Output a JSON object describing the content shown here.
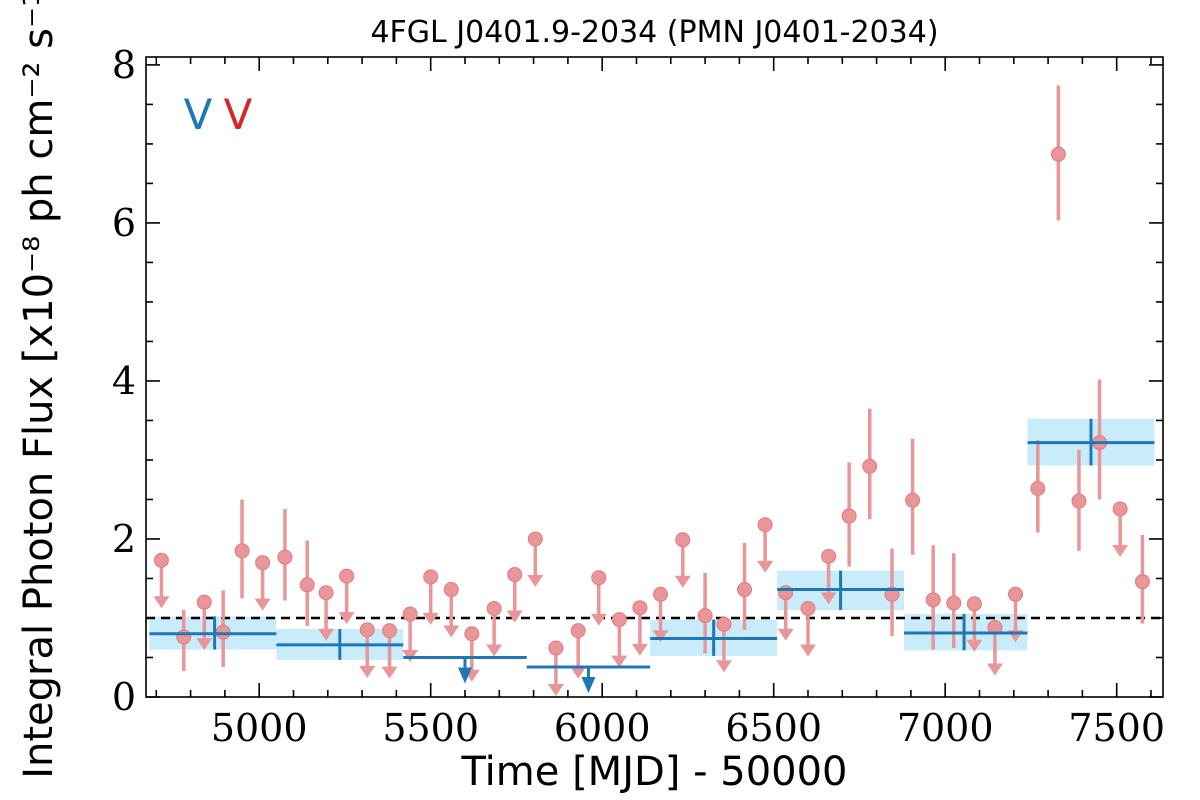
{
  "chart_data": {
    "type": "scatter",
    "title": "4FGL J0401.9-2034 (PMN J0401-2034)",
    "xlabel": "Time [MJD] - 50000",
    "ylabel": "Integral Photon Flux [x10⁻⁸ ph cm⁻² s⁻¹]",
    "xlim": [
      4670,
      7635
    ],
    "ylim": [
      0,
      8.1
    ],
    "x_ticks": [
      "5000",
      "5500",
      "6000",
      "6500",
      "7000",
      "7500"
    ],
    "y_ticks": [
      "0",
      "2",
      "4",
      "6",
      "8"
    ],
    "reference_line": {
      "y": 1.0,
      "style": "dashed",
      "color": "#000000"
    },
    "legend": [
      {
        "label": "V",
        "color": "#1f77b4"
      },
      {
        "label": "V",
        "color": "#d62728"
      }
    ],
    "colors": {
      "fine": "#e9969a",
      "coarse": "#1f77b4",
      "band": "#c9ecfa"
    },
    "series": [
      {
        "color": "#e9969a",
        "detections": [
          {
            "x": 4780,
            "y": 0.76,
            "lo": 0.33,
            "hi": 1.1
          },
          {
            "x": 4895,
            "y": 0.82,
            "lo": 0.38,
            "hi": 1.35
          },
          {
            "x": 4950,
            "y": 1.85,
            "lo": 1.25,
            "hi": 2.5
          },
          {
            "x": 5075,
            "y": 1.77,
            "lo": 1.22,
            "hi": 2.38
          },
          {
            "x": 5140,
            "y": 1.42,
            "lo": 0.9,
            "hi": 1.98
          },
          {
            "x": 6300,
            "y": 1.03,
            "lo": 0.55,
            "hi": 1.57
          },
          {
            "x": 6415,
            "y": 1.36,
            "lo": 0.85,
            "hi": 1.95
          },
          {
            "x": 6720,
            "y": 2.29,
            "lo": 1.65,
            "hi": 2.97
          },
          {
            "x": 6780,
            "y": 2.92,
            "lo": 2.25,
            "hi": 3.65
          },
          {
            "x": 6845,
            "y": 1.3,
            "lo": 0.77,
            "hi": 1.88
          },
          {
            "x": 6905,
            "y": 2.49,
            "lo": 1.8,
            "hi": 3.27
          },
          {
            "x": 6965,
            "y": 1.23,
            "lo": 0.6,
            "hi": 1.92
          },
          {
            "x": 7025,
            "y": 1.19,
            "lo": 0.62,
            "hi": 1.82
          },
          {
            "x": 7270,
            "y": 2.64,
            "lo": 2.08,
            "hi": 3.25
          },
          {
            "x": 7330,
            "y": 6.87,
            "lo": 6.03,
            "hi": 7.74
          },
          {
            "x": 7390,
            "y": 2.48,
            "lo": 1.85,
            "hi": 3.13
          },
          {
            "x": 7450,
            "y": 3.22,
            "lo": 2.5,
            "hi": 4.02
          },
          {
            "x": 7575,
            "y": 1.46,
            "lo": 0.93,
            "hi": 2.05
          }
        ],
        "upper_limits": [
          {
            "x": 4715,
            "y": 1.73
          },
          {
            "x": 4840,
            "y": 1.2
          },
          {
            "x": 5010,
            "y": 1.7
          },
          {
            "x": 5195,
            "y": 1.32
          },
          {
            "x": 5255,
            "y": 1.53
          },
          {
            "x": 5315,
            "y": 0.85
          },
          {
            "x": 5380,
            "y": 0.84
          },
          {
            "x": 5440,
            "y": 1.05
          },
          {
            "x": 5500,
            "y": 1.52
          },
          {
            "x": 5560,
            "y": 1.36
          },
          {
            "x": 5620,
            "y": 0.8
          },
          {
            "x": 5685,
            "y": 1.12
          },
          {
            "x": 5745,
            "y": 1.55
          },
          {
            "x": 5805,
            "y": 2.0
          },
          {
            "x": 5865,
            "y": 0.62
          },
          {
            "x": 5930,
            "y": 0.84
          },
          {
            "x": 5990,
            "y": 1.51
          },
          {
            "x": 6050,
            "y": 0.98
          },
          {
            "x": 6110,
            "y": 1.13
          },
          {
            "x": 6170,
            "y": 1.3
          },
          {
            "x": 6235,
            "y": 1.99
          },
          {
            "x": 6355,
            "y": 0.92
          },
          {
            "x": 6475,
            "y": 2.18
          },
          {
            "x": 6535,
            "y": 1.32
          },
          {
            "x": 6600,
            "y": 1.12
          },
          {
            "x": 6660,
            "y": 1.78
          },
          {
            "x": 7085,
            "y": 1.18
          },
          {
            "x": 7145,
            "y": 0.88
          },
          {
            "x": 7205,
            "y": 1.3
          },
          {
            "x": 7510,
            "y": 2.38
          }
        ]
      },
      {
        "color": "#1f77b4",
        "bins": [
          {
            "x0": 4680,
            "x1": 5050,
            "y": 0.8,
            "ylo": 0.6,
            "yhi": 1.02,
            "xc": 4870
          },
          {
            "x0": 5050,
            "x1": 5420,
            "y": 0.66,
            "ylo": 0.47,
            "yhi": 0.86,
            "xc": 5235
          },
          {
            "x0": 6140,
            "x1": 6510,
            "y": 0.74,
            "ylo": 0.52,
            "yhi": 0.98,
            "xc": 6325
          },
          {
            "x0": 6510,
            "x1": 6880,
            "y": 1.36,
            "ylo": 1.1,
            "yhi": 1.6,
            "xc": 6695
          },
          {
            "x0": 6880,
            "x1": 7240,
            "y": 0.81,
            "ylo": 0.59,
            "yhi": 1.05,
            "xc": 7055
          },
          {
            "x0": 7240,
            "x1": 7610,
            "y": 3.22,
            "ylo": 2.93,
            "yhi": 3.52,
            "xc": 7425
          }
        ],
        "upper_limit_bins": [
          {
            "x0": 5420,
            "x1": 5780,
            "y": 0.5,
            "xc": 5600
          },
          {
            "x0": 5780,
            "x1": 6140,
            "y": 0.38,
            "xc": 5960
          }
        ]
      }
    ]
  }
}
